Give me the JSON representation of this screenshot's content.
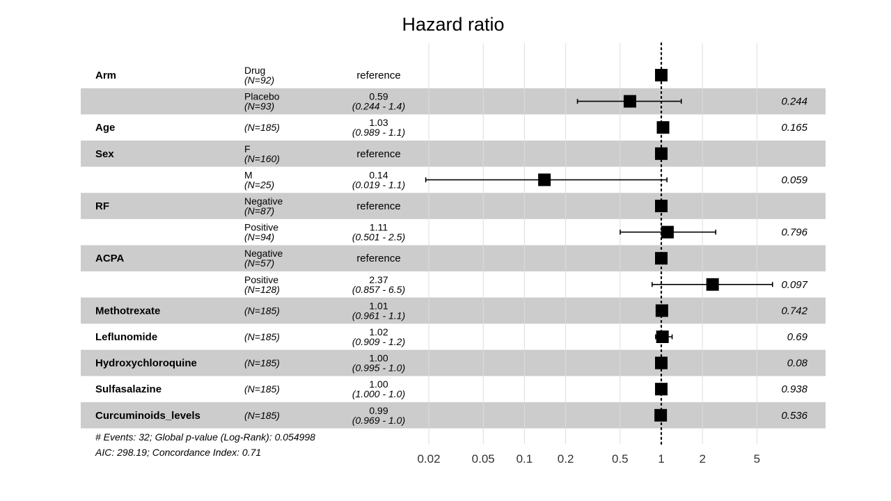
{
  "chart_data": {
    "type": "forest",
    "title": "Hazard ratio",
    "x_scale": "log",
    "xlim": [
      0.02,
      6.5
    ],
    "x_ticks": [
      0.02,
      0.05,
      0.1,
      0.2,
      0.5,
      1,
      2,
      5
    ],
    "x_tick_labels": [
      "0.02",
      "0.05",
      "0.1",
      "0.2",
      "0.5",
      "1",
      "2",
      "5"
    ],
    "reference_line": 1,
    "rows": [
      {
        "variable": "Arm",
        "level": "Drug",
        "n": "(N=92)",
        "estimate_text": "reference",
        "ci_text": "",
        "hr": 1,
        "lower": null,
        "upper": null,
        "p": "",
        "shaded": false
      },
      {
        "variable": "",
        "level": "Placebo",
        "n": "(N=93)",
        "estimate_text": "0.59",
        "ci_text": "(0.244 - 1.4)",
        "hr": 0.59,
        "lower": 0.244,
        "upper": 1.4,
        "p": "0.244",
        "shaded": true
      },
      {
        "variable": "Age",
        "level": "",
        "n": "(N=185)",
        "estimate_text": "1.03",
        "ci_text": "(0.989 - 1.1)",
        "hr": 1.03,
        "lower": 0.989,
        "upper": 1.1,
        "p": "0.165",
        "shaded": false
      },
      {
        "variable": "Sex",
        "level": "F",
        "n": "(N=160)",
        "estimate_text": "reference",
        "ci_text": "",
        "hr": 1,
        "lower": null,
        "upper": null,
        "p": "",
        "shaded": true
      },
      {
        "variable": "",
        "level": "M",
        "n": "(N=25)",
        "estimate_text": "0.14",
        "ci_text": "(0.019 - 1.1)",
        "hr": 0.14,
        "lower": 0.019,
        "upper": 1.1,
        "p": "0.059",
        "shaded": false
      },
      {
        "variable": "RF",
        "level": "Negative",
        "n": "(N=87)",
        "estimate_text": "reference",
        "ci_text": "",
        "hr": 1,
        "lower": null,
        "upper": null,
        "p": "",
        "shaded": true
      },
      {
        "variable": "",
        "level": "Positive",
        "n": "(N=94)",
        "estimate_text": "1.11",
        "ci_text": "(0.501 - 2.5)",
        "hr": 1.11,
        "lower": 0.501,
        "upper": 2.5,
        "p": "0.796",
        "shaded": false
      },
      {
        "variable": "ACPA",
        "level": "Negative",
        "n": "(N=57)",
        "estimate_text": "reference",
        "ci_text": "",
        "hr": 1,
        "lower": null,
        "upper": null,
        "p": "",
        "shaded": true
      },
      {
        "variable": "",
        "level": "Positive",
        "n": "(N=128)",
        "estimate_text": "2.37",
        "ci_text": "(0.857 - 6.5)",
        "hr": 2.37,
        "lower": 0.857,
        "upper": 6.5,
        "p": "0.097",
        "shaded": false
      },
      {
        "variable": "Methotrexate",
        "level": "",
        "n": "(N=185)",
        "estimate_text": "1.01",
        "ci_text": "(0.961 - 1.1)",
        "hr": 1.01,
        "lower": 0.961,
        "upper": 1.1,
        "p": "0.742",
        "shaded": true
      },
      {
        "variable": "Leflunomide",
        "level": "",
        "n": "(N=185)",
        "estimate_text": "1.02",
        "ci_text": "(0.909 - 1.2)",
        "hr": 1.02,
        "lower": 0.909,
        "upper": 1.2,
        "p": "0.69",
        "shaded": false
      },
      {
        "variable": "Hydroxychloroquine",
        "level": "",
        "n": "(N=185)",
        "estimate_text": "1.00",
        "ci_text": "(0.995 - 1.0)",
        "hr": 1.0,
        "lower": 0.995,
        "upper": 1.0,
        "p": "0.08",
        "shaded": true
      },
      {
        "variable": "Sulfasalazine",
        "level": "",
        "n": "(N=185)",
        "estimate_text": "1.00",
        "ci_text": "(1.000 - 1.0)",
        "hr": 1.0,
        "lower": 1.0,
        "upper": 1.0,
        "p": "0.938",
        "shaded": false
      },
      {
        "variable": "Curcuminoids_levels",
        "level": "",
        "n": "(N=185)",
        "estimate_text": "0.99",
        "ci_text": "(0.969 - 1.0)",
        "hr": 0.99,
        "lower": 0.969,
        "upper": 1.0,
        "p": "0.536",
        "shaded": true
      }
    ],
    "footnote_line1": "# Events: 32; Global p-value (Log-Rank): 0.054998",
    "footnote_line2": "AIC: 298.19; Concordance Index: 0.71",
    "colors": {
      "shade": "#cccccc",
      "grid": "#dcdcdc",
      "marker": "#000000"
    }
  }
}
